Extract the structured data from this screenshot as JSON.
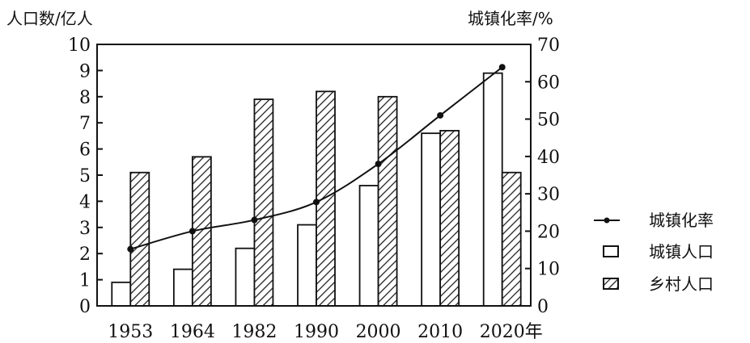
{
  "chart_data": {
    "type": "bar",
    "left_axis_title": "人口数/亿人",
    "right_axis_title": "城镇化率/%",
    "x_unit": "年",
    "categories": [
      "1953",
      "1964",
      "1982",
      "1990",
      "2000",
      "2010",
      "2020"
    ],
    "left_ylim": [
      0,
      10
    ],
    "left_ticks": [
      0,
      1,
      2,
      3,
      4,
      5,
      6,
      7,
      8,
      9,
      10
    ],
    "right_ylim": [
      0,
      70
    ],
    "right_ticks": [
      0,
      10,
      20,
      30,
      40,
      50,
      60,
      70
    ],
    "series": [
      {
        "name": "城镇人口",
        "kind": "bar",
        "axis": "left",
        "style": "hollow",
        "values": [
          0.9,
          1.4,
          2.2,
          3.1,
          4.6,
          6.6,
          8.9
        ]
      },
      {
        "name": "乡村人口",
        "kind": "bar",
        "axis": "left",
        "style": "hatched",
        "values": [
          5.1,
          5.7,
          7.9,
          8.2,
          8.0,
          6.7,
          5.1
        ]
      },
      {
        "name": "城镇化率",
        "kind": "line",
        "axis": "right",
        "marker": "dot",
        "values": [
          15.2,
          20.0,
          23.0,
          27.8,
          38.0,
          51.0,
          63.9
        ]
      }
    ],
    "legend": {
      "position": "right",
      "order": [
        "城镇化率",
        "城镇人口",
        "乡村人口"
      ]
    },
    "grid": false
  }
}
